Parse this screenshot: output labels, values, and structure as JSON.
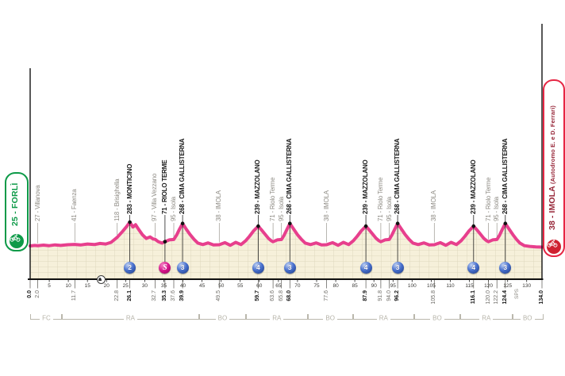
{
  "endpoints": {
    "start": {
      "label": "25 - FORLÌ"
    },
    "finish": {
      "label": "38 - IMOLA",
      "sublabel": " (Autodromo E. e D. Ferrari)"
    }
  },
  "colors": {
    "pink": "#e73f8d",
    "green": "#0d9a48",
    "red_border": "#e62644",
    "red_text": "#962537",
    "gpm_blue": "#2b56b0",
    "sprint_magenta": "#d6158b",
    "area_fill": "#f6f0da",
    "grid_line": "#ded7bd"
  },
  "chart_data": {
    "type": "area",
    "x_unit": "km",
    "x_range": [
      0,
      134
    ],
    "x_ticks": [
      5,
      10,
      15,
      20,
      25,
      30,
      35,
      40,
      45,
      50,
      55,
      60,
      65,
      70,
      75,
      80,
      85,
      90,
      95,
      100,
      105,
      110,
      115,
      120,
      125,
      130
    ],
    "route_note": "SPS",
    "tunnel_km": 18.3,
    "provinces": [
      {
        "label": "FC",
        "from": 0,
        "to": 8.1
      },
      {
        "label": "RA",
        "from": 8.1,
        "to": 44
      },
      {
        "label": "BO",
        "from": 44,
        "to": 56.3
      },
      {
        "label": "RA",
        "from": 56.3,
        "to": 72.4
      },
      {
        "label": "BO",
        "from": 72.4,
        "to": 84.3
      },
      {
        "label": "RA",
        "from": 84.3,
        "to": 100.3
      },
      {
        "label": "BO",
        "from": 100.3,
        "to": 112.4
      },
      {
        "label": "RA",
        "from": 112.4,
        "to": 126
      },
      {
        "label": "BO",
        "from": 126,
        "to": 134
      }
    ],
    "waypoints": [
      {
        "km": 0.0,
        "km_label": "0.0",
        "terminal": true,
        "bold": true
      },
      {
        "km": 2.0,
        "elev": 27,
        "name": "Villanova",
        "type": "minor"
      },
      {
        "km": 11.7,
        "elev": 41,
        "name": "Faenza",
        "type": "minor"
      },
      {
        "km": 22.8,
        "elev": 118,
        "name": "Brisighella",
        "type": "minor"
      },
      {
        "km": 26.1,
        "elev": 283,
        "name": "MONTICINO",
        "type": "major",
        "marker": "gpm",
        "cat": "2"
      },
      {
        "km": 32.7,
        "elev": 97,
        "name": "Villa Vezzano",
        "type": "minor"
      },
      {
        "km": 35.3,
        "elev": 71,
        "name": "RIOLO TERME",
        "type": "major",
        "marker": "sprint"
      },
      {
        "km": 37.6,
        "elev": 95,
        "name": "Isola",
        "type": "minor"
      },
      {
        "km": 39.9,
        "elev": 268,
        "name": "CIMA GALLISTERNA",
        "type": "major",
        "marker": "gpm",
        "cat": "3"
      },
      {
        "km": 49.5,
        "elev": 38,
        "name": "IMOLA",
        "type": "minor"
      },
      {
        "km": 59.7,
        "elev": 239,
        "name": "MAZZOLANO",
        "type": "major",
        "marker": "gpm",
        "cat": "4"
      },
      {
        "km": 63.6,
        "elev": 71,
        "name": "Riolo Terme",
        "type": "minor"
      },
      {
        "km": 65.8,
        "elev": 95,
        "name": "Isola",
        "type": "minor"
      },
      {
        "km": 68.0,
        "elev": 268,
        "name": "CIMA GALLISTERNA",
        "type": "major",
        "marker": "gpm",
        "cat": "3"
      },
      {
        "km": 77.6,
        "elev": 38,
        "name": "IMOLA",
        "type": "minor"
      },
      {
        "km": 87.9,
        "elev": 239,
        "name": "MAZZOLANO",
        "type": "major",
        "marker": "gpm",
        "cat": "4"
      },
      {
        "km": 91.8,
        "elev": 71,
        "name": "Riolo Terme",
        "type": "minor"
      },
      {
        "km": 94.0,
        "elev": 95,
        "name": "Isola",
        "type": "minor"
      },
      {
        "km": 96.2,
        "elev": 268,
        "name": "CIMA GALLISTERNA",
        "type": "major",
        "marker": "gpm",
        "cat": "3"
      },
      {
        "km": 105.8,
        "elev": 38,
        "name": "IMOLA",
        "type": "minor"
      },
      {
        "km": 116.1,
        "elev": 239,
        "name": "MAZZOLANO",
        "type": "major",
        "marker": "gpm",
        "cat": "4"
      },
      {
        "km": 120.0,
        "elev": 71,
        "name": "Riolo Terme",
        "type": "minor"
      },
      {
        "km": 122.2,
        "elev": 95,
        "name": "Isola",
        "type": "minor"
      },
      {
        "km": 124.4,
        "elev": 268,
        "name": "CIMA GALLISTERNA",
        "type": "major",
        "marker": "gpm",
        "cat": "3"
      },
      {
        "km": 134.0,
        "km_label": "134.0",
        "terminal": true,
        "bold": true
      }
    ],
    "profile_points": [
      [
        0,
        25
      ],
      [
        1.2,
        30
      ],
      [
        2,
        27
      ],
      [
        3.5,
        34
      ],
      [
        5,
        28
      ],
      [
        6.5,
        36
      ],
      [
        8,
        30
      ],
      [
        9.8,
        38
      ],
      [
        11.7,
        41
      ],
      [
        13.2,
        35
      ],
      [
        15,
        46
      ],
      [
        16.8,
        40
      ],
      [
        18.3,
        52
      ],
      [
        19.8,
        46
      ],
      [
        21.2,
        64
      ],
      [
        22.8,
        118
      ],
      [
        24.2,
        182
      ],
      [
        25.2,
        232
      ],
      [
        26.1,
        283
      ],
      [
        26.9,
        230
      ],
      [
        27.6,
        255
      ],
      [
        28.4,
        204
      ],
      [
        29.4,
        146
      ],
      [
        30.4,
        106
      ],
      [
        31.4,
        122
      ],
      [
        32.2,
        100
      ],
      [
        32.7,
        97
      ],
      [
        33.6,
        70
      ],
      [
        34.5,
        56
      ],
      [
        35.3,
        71
      ],
      [
        36.4,
        90
      ],
      [
        37.6,
        95
      ],
      [
        38.4,
        146
      ],
      [
        39.1,
        206
      ],
      [
        39.9,
        268
      ],
      [
        40.9,
        204
      ],
      [
        41.9,
        146
      ],
      [
        42.9,
        96
      ],
      [
        43.9,
        56
      ],
      [
        45.2,
        40
      ],
      [
        46.6,
        58
      ],
      [
        48,
        36
      ],
      [
        49.5,
        38
      ],
      [
        51,
        60
      ],
      [
        52.4,
        32
      ],
      [
        53.8,
        64
      ],
      [
        55.2,
        40
      ],
      [
        56.4,
        80
      ],
      [
        57.4,
        128
      ],
      [
        58.5,
        188
      ],
      [
        59.7,
        239
      ],
      [
        60.7,
        192
      ],
      [
        61.6,
        146
      ],
      [
        62.4,
        106
      ],
      [
        63.1,
        82
      ],
      [
        63.6,
        71
      ],
      [
        64.7,
        90
      ],
      [
        65.8,
        95
      ],
      [
        66.5,
        142
      ],
      [
        67.2,
        202
      ],
      [
        68,
        268
      ],
      [
        69,
        206
      ],
      [
        70,
        146
      ],
      [
        71,
        96
      ],
      [
        72,
        56
      ],
      [
        73.4,
        40
      ],
      [
        74.9,
        58
      ],
      [
        76.3,
        36
      ],
      [
        77.6,
        38
      ],
      [
        79.2,
        60
      ],
      [
        80.6,
        32
      ],
      [
        82,
        64
      ],
      [
        83.4,
        40
      ],
      [
        84.6,
        80
      ],
      [
        85.6,
        128
      ],
      [
        86.7,
        188
      ],
      [
        87.9,
        239
      ],
      [
        88.9,
        192
      ],
      [
        89.8,
        146
      ],
      [
        90.6,
        106
      ],
      [
        91.3,
        82
      ],
      [
        91.8,
        71
      ],
      [
        92.9,
        90
      ],
      [
        94,
        95
      ],
      [
        94.7,
        142
      ],
      [
        95.4,
        202
      ],
      [
        96.2,
        268
      ],
      [
        97.2,
        206
      ],
      [
        98.2,
        146
      ],
      [
        99.2,
        96
      ],
      [
        100.2,
        56
      ],
      [
        101.6,
        40
      ],
      [
        103.1,
        58
      ],
      [
        104.5,
        36
      ],
      [
        105.8,
        38
      ],
      [
        107.4,
        60
      ],
      [
        108.8,
        32
      ],
      [
        110.2,
        64
      ],
      [
        111.6,
        40
      ],
      [
        112.8,
        80
      ],
      [
        113.8,
        128
      ],
      [
        114.9,
        188
      ],
      [
        116.1,
        239
      ],
      [
        117.1,
        192
      ],
      [
        118,
        146
      ],
      [
        118.8,
        106
      ],
      [
        119.5,
        82
      ],
      [
        120,
        71
      ],
      [
        121.1,
        90
      ],
      [
        122.2,
        95
      ],
      [
        122.9,
        142
      ],
      [
        123.6,
        202
      ],
      [
        124.4,
        268
      ],
      [
        125.4,
        206
      ],
      [
        126.4,
        146
      ],
      [
        127.3,
        96
      ],
      [
        128.2,
        56
      ],
      [
        129.4,
        28
      ],
      [
        130.8,
        20
      ],
      [
        132.4,
        14
      ],
      [
        134,
        12
      ]
    ]
  }
}
